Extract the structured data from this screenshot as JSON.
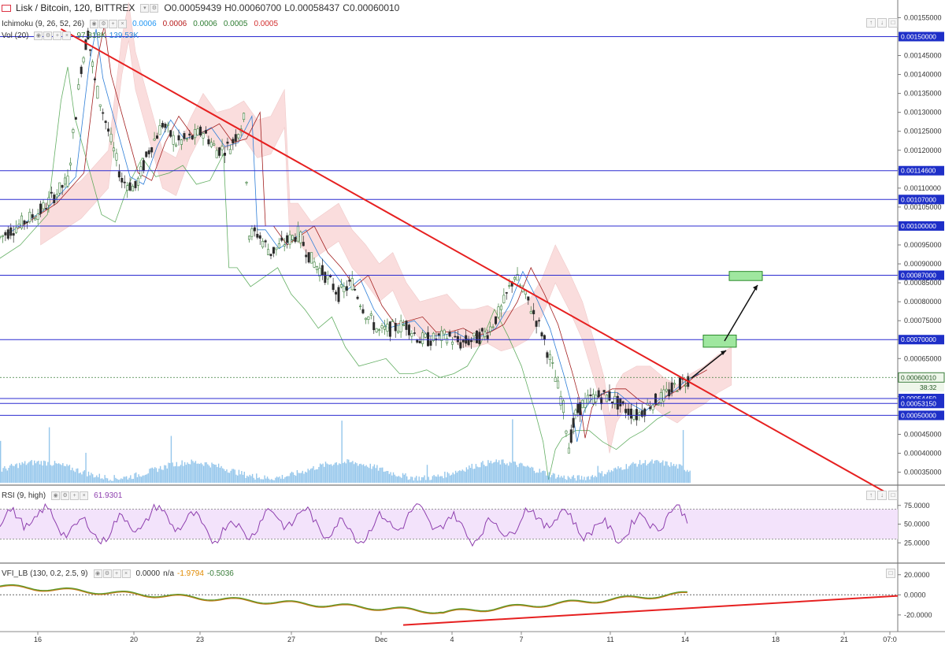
{
  "header": {
    "symbol": "Lisk / Bitcoin, 120, BITTREX",
    "open": "O0.00059439",
    "high": "H0.00060700",
    "low": "L0.00058437",
    "close": "C0.00060010"
  },
  "ichimoku": {
    "label": "Ichimoku (9, 26, 52, 26)",
    "values": [
      "0.0006",
      "0.0006",
      "0.0006",
      "0.0005",
      "0.0005"
    ],
    "colors": [
      "#2196f3",
      "#b71c1c",
      "#2e7d32",
      "#2e7d32",
      "#d32f2f"
    ]
  },
  "volume": {
    "label": "Vol (20)",
    "v1": "97.318K",
    "v2": "139.53K"
  },
  "rsi": {
    "label": "RSI (9, high)",
    "value": "61.9301"
  },
  "vfi": {
    "label": "VFI_LB (130, 0.2, 2.5, 9)",
    "v1": "0.0000",
    "v2": "n/a",
    "v3": "-1.9794",
    "v4": "-0.5036"
  },
  "colors": {
    "up": "#3a7d3a",
    "down": "#2b2b2b",
    "trend": "#e62020",
    "hline": "#2b2bd0",
    "kumo_bear": "#f4b6b6",
    "kumo_bull": "#b9dfb5",
    "rsi": "#8e3fae",
    "vfi": "#5a9a2a",
    "vol": "#5aa8e0"
  },
  "chart_data": {
    "type": "candlestick",
    "title": "Lisk / Bitcoin, 120, BITTREX",
    "x_tick_labels": [
      "16",
      "20",
      "23",
      "27",
      "Dec",
      "4",
      "7",
      "11",
      "14",
      "18",
      "21",
      "07:0"
    ],
    "price_axis": {
      "range": [
        0.00032,
        0.00158
      ],
      "tick_labels": [
        "0.00155000",
        "0.00150000",
        "0.00145000",
        "0.00140000",
        "0.00135000",
        "0.00130000",
        "0.00125000",
        "0.00120000",
        "0.00115000",
        "0.00110000",
        "0.00105000",
        "0.00100000",
        "0.00095000",
        "0.00090000",
        "0.00085000",
        "0.00080000",
        "0.00075000",
        "0.00070000",
        "0.00065000",
        "0.00060000",
        "0.00055000",
        "0.00050000",
        "0.00045000",
        "0.00040000",
        "0.00035000"
      ],
      "ticks": [
        0.00155,
        0.0015,
        0.00145,
        0.0014,
        0.00135,
        0.0013,
        0.00125,
        0.0012,
        0.00115,
        0.0011,
        0.00105,
        0.001,
        0.00095,
        0.0009,
        0.00085,
        0.0008,
        0.00075,
        0.0007,
        0.00065,
        0.0006,
        0.00055,
        0.0005,
        0.00045,
        0.0004,
        0.00035
      ]
    },
    "horizontal_levels": [
      {
        "value": 0.0015,
        "label": "0.00150000"
      },
      {
        "value": 0.001146,
        "label": "0.00114600"
      },
      {
        "value": 0.00107,
        "label": "0.00107000"
      },
      {
        "value": 0.001,
        "label": "0.00100000"
      },
      {
        "value": 0.00087,
        "label": "0.00087000"
      },
      {
        "value": 0.0007,
        "label": "0.00070000"
      },
      {
        "value": 0.0005445,
        "label": "0.00054450"
      },
      {
        "value": 0.0005315,
        "label": "0.00053150"
      },
      {
        "value": 0.0005,
        "label": "0.00050000"
      }
    ],
    "last_price": {
      "value": 0.0006001,
      "label": "0.00060010",
      "countdown": "38:32"
    },
    "price_path": [
      [
        0,
        0.00097
      ],
      [
        3,
        0.00104
      ],
      [
        5,
        0.00112
      ],
      [
        6,
        0.00142
      ],
      [
        6.5,
        0.00151
      ],
      [
        7,
        0.00138
      ],
      [
        8,
        0.00125
      ],
      [
        9,
        0.00112
      ],
      [
        10,
        0.0011
      ],
      [
        11,
        0.0012
      ],
      [
        12,
        0.00127
      ],
      [
        13,
        0.00122
      ],
      [
        14,
        0.00123
      ],
      [
        15,
        0.00125
      ],
      [
        16,
        0.0012
      ],
      [
        17,
        0.00121
      ],
      [
        18,
        0.00128
      ],
      [
        18.4,
        0.00098
      ],
      [
        19,
        0.00098
      ],
      [
        20,
        0.00093
      ],
      [
        22,
        0.00098
      ],
      [
        23,
        0.00091
      ],
      [
        24,
        0.00087
      ],
      [
        25,
        0.00082
      ],
      [
        26,
        0.00085
      ],
      [
        27,
        0.00077
      ],
      [
        28,
        0.00072
      ],
      [
        29,
        0.00073
      ],
      [
        30,
        0.00074
      ],
      [
        31,
        0.0007
      ],
      [
        32,
        0.0007
      ],
      [
        33,
        0.00071
      ],
      [
        34,
        0.00069
      ],
      [
        35,
        0.0007
      ],
      [
        36,
        0.00072
      ],
      [
        37,
        0.00078
      ],
      [
        38,
        0.00087
      ],
      [
        39,
        0.0008
      ],
      [
        40,
        0.00072
      ],
      [
        41,
        0.0006
      ],
      [
        41.6,
        0.00052
      ],
      [
        42,
        0.00042
      ],
      [
        42.5,
        0.0005
      ],
      [
        43,
        0.00053
      ],
      [
        44,
        0.00055
      ],
      [
        45,
        0.00055
      ],
      [
        46,
        0.00052
      ],
      [
        47,
        0.0005
      ],
      [
        48,
        0.00053
      ],
      [
        49,
        0.00055
      ],
      [
        50,
        0.00058
      ],
      [
        51,
        0.0006
      ]
    ],
    "trend_lines": [
      {
        "pane": "price",
        "from": [
          4.5,
          0.00152
        ],
        "to": [
          85,
          0.0003
        ]
      },
      {
        "pane": "vfi",
        "from": [
          40,
          -30
        ],
        "to": [
          89,
          10
        ]
      }
    ],
    "target_zones": [
      {
        "low": 0.00068,
        "high": 0.000712
      },
      {
        "low": 0.000856,
        "high": 0.00088
      }
    ],
    "rsi": {
      "range": [
        0,
        100
      ],
      "tick_labels": [
        "75.0000",
        "50.0000",
        "25.0000"
      ],
      "ticks": [
        75,
        50,
        25
      ],
      "overbought": 70,
      "oversold": 30,
      "last": 61.9301
    },
    "vfi_axis": {
      "range": [
        -35,
        30
      ],
      "tick_labels": [
        "20.0000",
        "0.0000",
        "-20.0000"
      ],
      "ticks": [
        20,
        0,
        -20
      ]
    }
  }
}
